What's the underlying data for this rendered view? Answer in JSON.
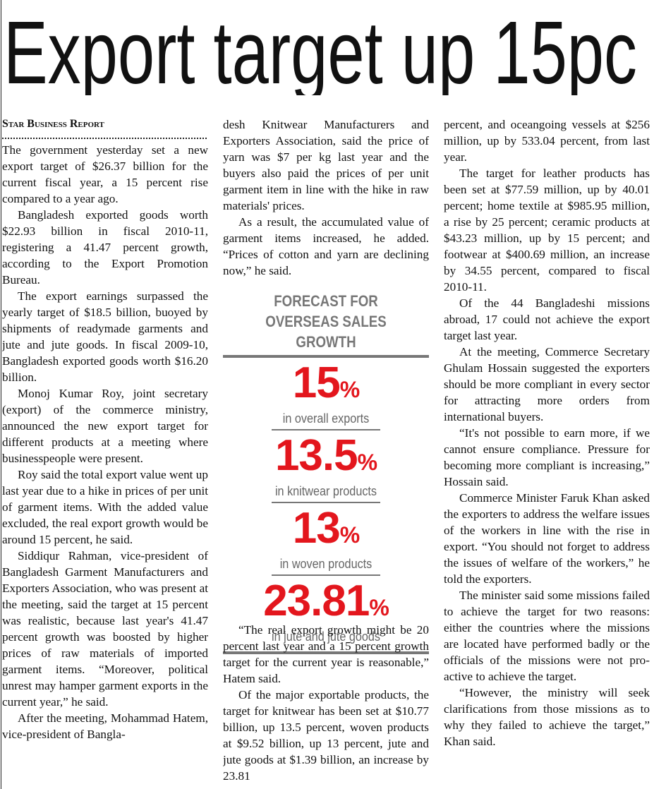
{
  "headline": "Export target up 15pc",
  "byline": "Star Business Report",
  "columns": [
    {
      "paragraphs": [
        "The government yesterday set a new export target of $26.37 billion for the current fiscal year, a 15 percent rise compared to a year ago.",
        "Bangladesh exported goods worth $22.93 billion in fiscal 2010-11, registering a 41.47 percent growth, according to the Export Promotion Bureau.",
        "The export earnings surpassed the yearly target of $18.5 billion, buoyed by shipments of readymade garments and jute and jute goods. In fiscal 2009-10, Bangladesh exported goods worth $16.20 billion.",
        "Monoj Kumar Roy, joint secretary (export) of the commerce ministry, announced the new export target for different products at a meeting where businesspeople were present.",
        "Roy said the total export value went up last year due to a hike in prices of per unit of garment items. With the added value excluded, the real export growth would be around 15 percent, he said.",
        "Siddiqur Rahman, vice-president of Bangladesh Garment Manufacturers and Exporters Association, who was present at the meeting, said the target at 15 percent was realistic, because last year's 41.47 percent growth was boosted by higher prices of raw materials of imported garment items. “Moreover, political unrest may hamper garment exports in the current year,” he said.",
        "After the meeting, Mohammad Hatem, vice-president of Bangla-"
      ]
    },
    {
      "paragraphs": [
        "desh Knitwear Manufacturers and Exporters Association, said the price of yarn was $7 per kg last year and the buyers also paid the prices of per unit garment item in line with the hike in raw materials' prices.",
        "As a result, the accumulated value of garment items increased, he added. “Prices of cotton and yarn are declining now,” he said."
      ],
      "paragraphs_after": [
        "“The real export growth might be 20 percent last year and a 15 percent growth target for the current year is reasonable,” Hatem said.",
        "Of the major exportable products, the target for knitwear has been set at $10.77 billion, up 13.5 percent, woven products at $9.52 billion, up 13 percent, jute and jute goods at $1.39 billion, an increase by 23.81"
      ]
    },
    {
      "paragraphs": [
        "percent, and oceangoing vessels at $256 million, up by 533.04 percent, from last year.",
        "The target for leather products has been set at $77.59 million, up by 40.01 percent; home textile at $985.95 million, a rise by 25 percent; ceramic products at $43.23 million, up by 15 percent; and footwear at $400.69 million, an increase by 34.55 percent, compared to fiscal 2010-11.",
        "Of the 44 Bangladeshi missions abroad, 17 could not achieve the export target last year.",
        "At the meeting, Commerce Secretary Ghulam Hossain suggested the exporters should be more compliant in every sector for attracting more orders from international buyers.",
        "“It's not possible to earn more, if we cannot ensure compliance. Pressure for becoming more compliant is increasing,” Hossain said.",
        "Commerce Minister Faruk Khan asked the exporters to address the welfare issues of the workers in line with the rise in export. “You should not forget to address the issues of welfare of the workers,” he told the exporters.",
        "The minister said some missions failed to achieve the target for two reasons: either the countries where the missions are located have performed badly or the officials of the missions were not pro-active to achieve the target.",
        "“However, the ministry will seek clarifications from those missions as to why they failed to achieve the target,” Khan said."
      ]
    }
  ],
  "infographic": {
    "title_lines": [
      "FORECAST FOR",
      "OVERSEAS SALES GROWTH"
    ],
    "items": [
      {
        "value": "15",
        "unit": "%",
        "label": "in overall exports"
      },
      {
        "value": "13.5",
        "unit": "%",
        "label": "in knitwear products"
      },
      {
        "value": "13",
        "unit": "%",
        "label": "in woven products"
      },
      {
        "value": "23.81",
        "unit": "%",
        "label": "in jute and jute goods"
      }
    ]
  }
}
